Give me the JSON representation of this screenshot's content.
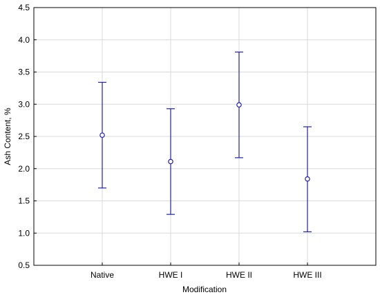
{
  "chart_data": {
    "type": "scatter",
    "xlabel": "Modification",
    "ylabel": "Ash Content, %",
    "categories": [
      "Native",
      "HWE I",
      "HWE II",
      "HWE III"
    ],
    "series": [
      {
        "means": [
          2.52,
          2.11,
          2.99,
          1.84
        ],
        "lower": [
          1.7,
          1.29,
          2.17,
          1.02
        ],
        "upper": [
          3.34,
          2.93,
          3.81,
          2.65
        ]
      }
    ],
    "ylim": [
      0.5,
      4.5
    ],
    "yticks": [
      0.5,
      1.0,
      1.5,
      2.0,
      2.5,
      3.0,
      3.5,
      4.0,
      4.5
    ],
    "grid": true,
    "color": "#1f1fb4",
    "gridColor": "#d9d9d9"
  }
}
